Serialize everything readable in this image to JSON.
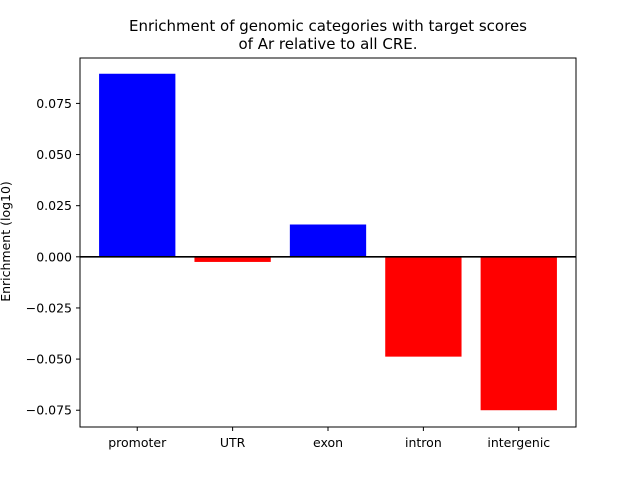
{
  "chart_data": {
    "type": "bar",
    "title": "Enrichment of genomic categories with target scores",
    "subtitle": "of Ar relative to all CRE.",
    "xlabel": "",
    "ylabel": "Enrichment (log10)",
    "categories": [
      "promoter",
      "UTR",
      "exon",
      "intron",
      "intergenic"
    ],
    "values": [
      0.0895,
      -0.0025,
      0.0158,
      -0.0488,
      -0.075
    ],
    "ylim": [
      -0.0832,
      0.0972
    ],
    "yticks": [
      0.075,
      0.05,
      0.025,
      0.0,
      -0.025,
      -0.05,
      -0.075
    ],
    "ytick_labels": [
      "0.075",
      "0.050",
      "0.025",
      "0.000",
      "−0.025",
      "−0.050",
      "−0.075"
    ],
    "colors": {
      "positive": "#0000ff",
      "negative": "#ff0000",
      "zero_line": "#000000"
    },
    "grid": false,
    "legend": "none"
  }
}
